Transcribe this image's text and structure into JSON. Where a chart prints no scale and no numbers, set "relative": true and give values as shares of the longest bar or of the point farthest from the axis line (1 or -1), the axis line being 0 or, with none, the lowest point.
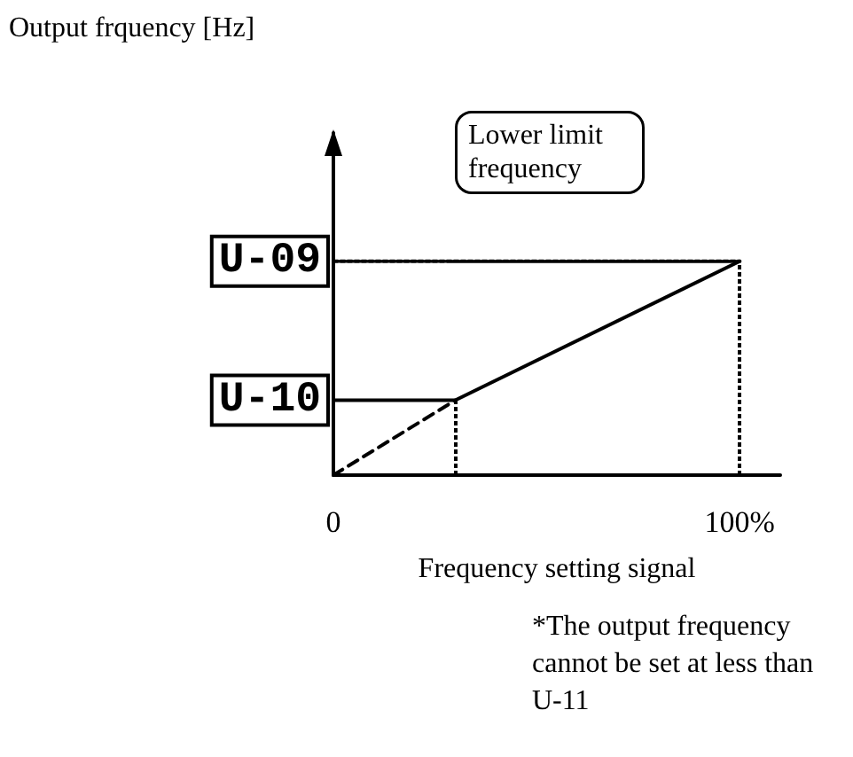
{
  "chart_data": {
    "type": "line",
    "relative": true,
    "xlabel": "Frequency setting signal",
    "xlim": [
      0,
      110
    ],
    "xticks": [
      0,
      {
        "value": 100,
        "label": "100%"
      }
    ],
    "marker": "none",
    "grid": false,
    "series": [
      {
        "color": "#000000",
        "x": [
          0,
          30,
          100
        ],
        "values": [
          0.35,
          0.35,
          1
        ],
        "line_style": "solid"
      },
      {
        "color": "#000000",
        "x": [
          0,
          30
        ],
        "values": [
          0,
          0.35
        ],
        "line_style": "dashed"
      },
      {
        "color": "#000000",
        "x": [
          0,
          100
        ],
        "values": [
          1,
          1
        ],
        "line_style": "dotted"
      }
    ],
    "ref_lines": [
      {
        "axis": "x",
        "value": 100,
        "line_style": "dotted",
        "color": "#000000"
      },
      {
        "axis": "x",
        "value": 30,
        "line_style": "dotted",
        "color": "#000000"
      }
    ],
    "annotations": [
      "Output frquency [Hz]",
      {
        "text": "U-09",
        "x": 0,
        "y": 1
      },
      {
        "text": "U-10",
        "x": 0,
        "y": 0.35
      },
      "Lower limit frequency",
      "*The output frequency cannot be set at less than U-11"
    ]
  }
}
